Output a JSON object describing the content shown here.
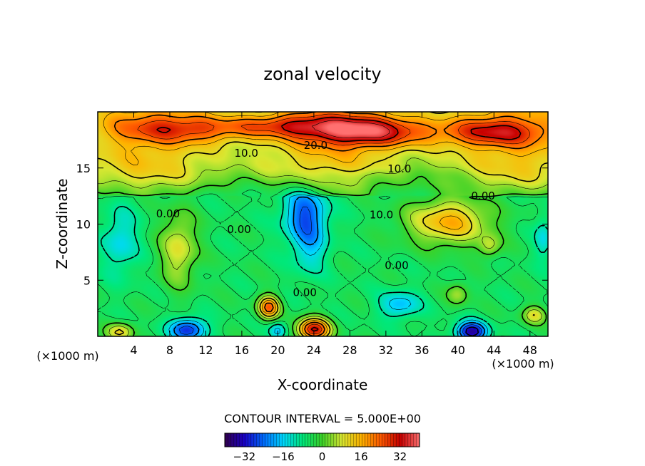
{
  "chart_data": {
    "type": "heatmap",
    "title": "zonal velocity",
    "xlabel": "X-coordinate",
    "ylabel": "Z-coordinate",
    "x_unit_label": "(×1000 m)",
    "x_unit_label_right": "(×1000 m)",
    "xlim": [
      0,
      50
    ],
    "ylim": [
      0,
      20
    ],
    "x_ticks": [
      4,
      8,
      12,
      16,
      20,
      24,
      28,
      32,
      36,
      40,
      44,
      48
    ],
    "y_ticks": [
      5,
      10,
      15
    ],
    "grid": false,
    "contour_interval_label": "CONTOUR INTERVAL = 5.000E+00",
    "contour_interval": 5.0,
    "value_range": [
      -40,
      40
    ],
    "colorbar_ticks": [
      -32,
      -16,
      0,
      16,
      32
    ],
    "contour_labels": [
      {
        "text": "20.0",
        "x": 24.2,
        "y": 16.7
      },
      {
        "text": "10.0",
        "x": 16.5,
        "y": 16.0
      },
      {
        "text": "10.0",
        "x": 33.5,
        "y": 14.6
      },
      {
        "text": "10.0",
        "x": 31.5,
        "y": 10.5
      },
      {
        "text": "0.00",
        "x": 7.8,
        "y": 10.6
      },
      {
        "text": "0.00",
        "x": 15.7,
        "y": 9.2
      },
      {
        "text": "0.00",
        "x": 33.2,
        "y": 6.0
      },
      {
        "text": "0.00",
        "x": 23.0,
        "y": 3.6
      },
      {
        "text": "0.00",
        "x": 42.8,
        "y": 12.2
      }
    ],
    "features": [
      {
        "x": 30,
        "y": 18.3,
        "value": 28,
        "sx": 7,
        "sy": 1.4
      },
      {
        "x": 10,
        "y": 18.5,
        "value": 18,
        "sx": 8,
        "sy": 1.3
      },
      {
        "x": 44,
        "y": 18.2,
        "value": 20,
        "sx": 6,
        "sy": 1.3
      },
      {
        "x": 21,
        "y": 18.8,
        "value": 14,
        "sx": 6,
        "sy": 1.0
      },
      {
        "x": 9,
        "y": 7.8,
        "value": 14,
        "sx": 2.0,
        "sy": 3.2
      },
      {
        "x": 39,
        "y": 10.2,
        "value": 21,
        "sx": 4.5,
        "sy": 2.0
      },
      {
        "x": 43.5,
        "y": 8.0,
        "value": 10,
        "sx": 1.2,
        "sy": 1.0
      },
      {
        "x": 19,
        "y": 2.6,
        "value": 28,
        "sx": 1.2,
        "sy": 1.0
      },
      {
        "x": 24,
        "y": 0.6,
        "value": 36,
        "sx": 1.8,
        "sy": 1.0
      },
      {
        "x": 2.5,
        "y": 0.4,
        "value": 16,
        "sx": 1.5,
        "sy": 0.8
      },
      {
        "x": 48.5,
        "y": 1.9,
        "value": 14,
        "sx": 1.3,
        "sy": 0.8
      },
      {
        "x": 40,
        "y": 3.8,
        "value": 10,
        "sx": 1.2,
        "sy": 1.0
      },
      {
        "x": 23,
        "y": 11.0,
        "value": -19,
        "sx": 2.4,
        "sy": 2.4
      },
      {
        "x": 23.5,
        "y": 8.0,
        "value": -10,
        "sx": 2.0,
        "sy": 2.5
      },
      {
        "x": 2.5,
        "y": 8.5,
        "value": -10,
        "sx": 2.0,
        "sy": 3.0
      },
      {
        "x": 49.5,
        "y": 8.8,
        "value": -9,
        "sx": 1.0,
        "sy": 2.0
      },
      {
        "x": 10,
        "y": 0.6,
        "value": -24,
        "sx": 2.0,
        "sy": 1.0
      },
      {
        "x": 20,
        "y": 0.5,
        "value": -12,
        "sx": 1.0,
        "sy": 0.8
      },
      {
        "x": 33.5,
        "y": 2.8,
        "value": -13,
        "sx": 2.2,
        "sy": 1.2
      },
      {
        "x": 41.5,
        "y": 0.4,
        "value": -30,
        "sx": 1.7,
        "sy": 0.9
      },
      {
        "x": 32,
        "y": 14.3,
        "value": -3,
        "sx": 10,
        "sy": 0.7
      }
    ],
    "background_value": -5
  },
  "colors": {
    "stops": [
      "#33004d",
      "#1a00c8",
      "#006cff",
      "#00d8ff",
      "#00e87a",
      "#3cd228",
      "#d8e832",
      "#ffb400",
      "#ff5a00",
      "#c80000",
      "#ff7070"
    ]
  }
}
